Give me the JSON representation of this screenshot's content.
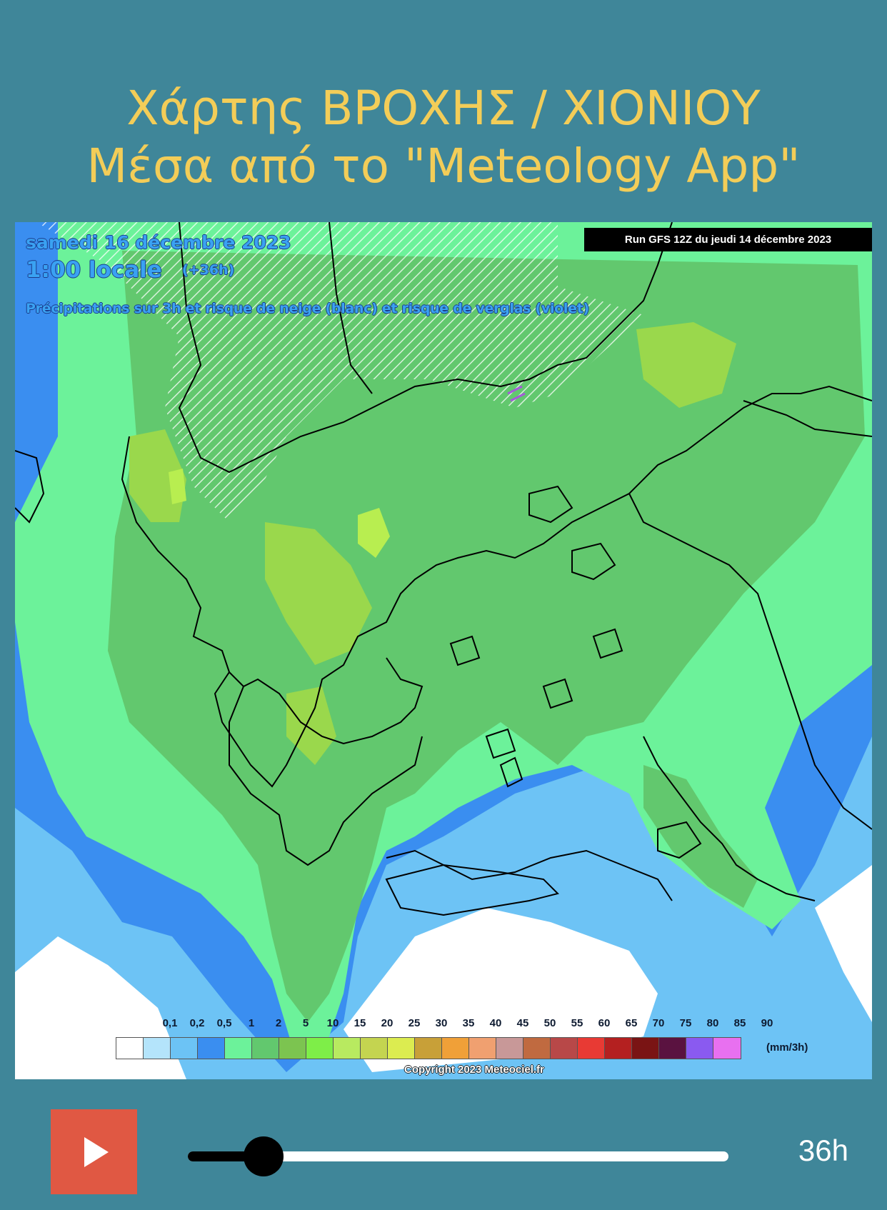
{
  "header": {
    "title_line1": "Χάρτης ΒΡΟΧΗΣ / ΧΙΟΝΙΟΥ",
    "title_line2": "Μέσα από το \"Meteology App\""
  },
  "map": {
    "date": "samedi 16 décembre 2023",
    "time": "1:00 locale",
    "offset": "(+36h)",
    "description": "Précipitations sur 3h et risque de neige (blanc) et risque de verglas (violet)",
    "run": "Run GFS 12Z du jeudi 14 décembre 2023",
    "copyright": "Copyright 2023 Meteociel.fr",
    "unit": "(mm/3h)",
    "scale_ticks": [
      "0,1",
      "0,2",
      "0,5",
      "1",
      "2",
      "5",
      "10",
      "15",
      "20",
      "25",
      "30",
      "35",
      "40",
      "45",
      "50",
      "55",
      "60",
      "65",
      "70",
      "75",
      "80",
      "85",
      "90"
    ],
    "scale_colors": [
      "#ffffff",
      "#b4e4fb",
      "#6cc3f5",
      "#3a8ef0",
      "#6cf29a",
      "#62c86e",
      "#7cc450",
      "#7eee48",
      "#b8ea60",
      "#c4d450",
      "#dcec50",
      "#c8a038",
      "#f0a038",
      "#f0a070",
      "#c89898",
      "#c06a40",
      "#b84848",
      "#e83a34",
      "#b42020",
      "#7a1414",
      "#5a1240",
      "#8a5af0",
      "#e870f0"
    ],
    "colors": {
      "light_blue": "#6dc3f5",
      "blue": "#3a8ef0",
      "mint": "#6cf29a",
      "green": "#62c86e",
      "yellow_green": "#9ad84c",
      "lime": "#b8ee50",
      "snow": "#ffffff"
    }
  },
  "player": {
    "play_icon": "play-icon",
    "progress": 0.14,
    "hours_label": "36h",
    "play_color": "#e05843"
  }
}
